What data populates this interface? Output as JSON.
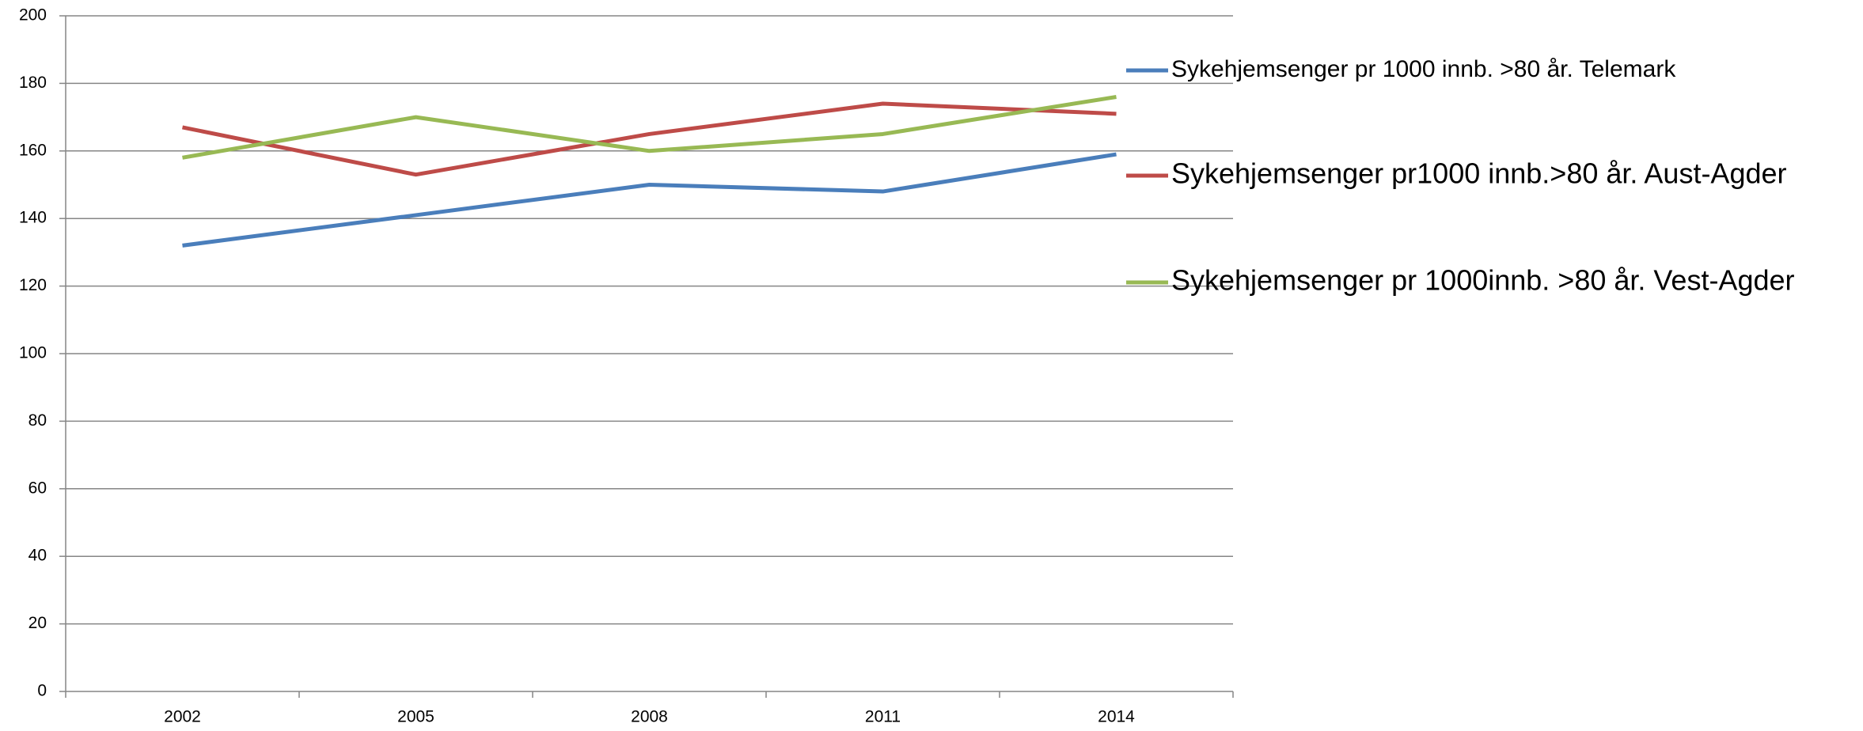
{
  "chart_data": {
    "type": "line",
    "categories": [
      "2002",
      "2005",
      "2008",
      "2011",
      "2014"
    ],
    "series": [
      {
        "name": "Sykehjemsenger pr 1000 innb. >80 år. Telemark",
        "color": "#4a7ebb",
        "values": [
          132,
          141,
          150,
          148,
          159
        ]
      },
      {
        "name": "Sykehjemsenger pr1000 innb.>80 år. Aust-Agder",
        "color": "#be4b48",
        "values": [
          167,
          153,
          165,
          174,
          171
        ]
      },
      {
        "name": "Sykehjemsenger pr 1000innb. >80 år. Vest-Agder",
        "color": "#98b954",
        "values": [
          158,
          170,
          160,
          165,
          176
        ]
      }
    ],
    "ylim": [
      0,
      200
    ],
    "yticks": [
      0,
      20,
      40,
      60,
      80,
      100,
      120,
      140,
      160,
      180,
      200
    ],
    "grid": true,
    "legend": "right"
  }
}
